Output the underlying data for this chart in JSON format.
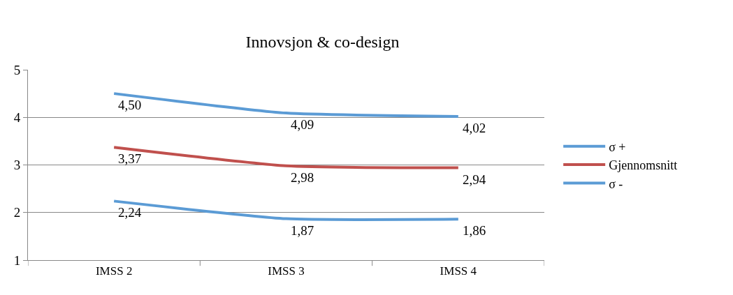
{
  "chart_data": {
    "type": "line",
    "title": "Innovsjon & co-design",
    "categories": [
      "IMSS 2",
      "IMSS 3",
      "IMSS 4"
    ],
    "series": [
      {
        "name": "σ +",
        "color": "#5b9bd5",
        "values": [
          4.5,
          4.09,
          4.02
        ],
        "value_labels": [
          "4,50",
          "4,09",
          "4,02"
        ]
      },
      {
        "name": "Gjennomsnitt",
        "color": "#c0504d",
        "values": [
          3.37,
          2.98,
          2.94
        ],
        "value_labels": [
          "3,37",
          "2,98",
          "2,94"
        ]
      },
      {
        "name": "σ -",
        "color": "#5b9bd5",
        "values": [
          2.24,
          1.87,
          1.86
        ],
        "value_labels": [
          "2,24",
          "1,87",
          "1,86"
        ]
      }
    ],
    "ylim": [
      1,
      5
    ],
    "yticks": [
      1,
      2,
      3,
      4,
      5
    ],
    "grid": "y",
    "legend": "right",
    "marker": "none",
    "line_style": "solid"
  }
}
